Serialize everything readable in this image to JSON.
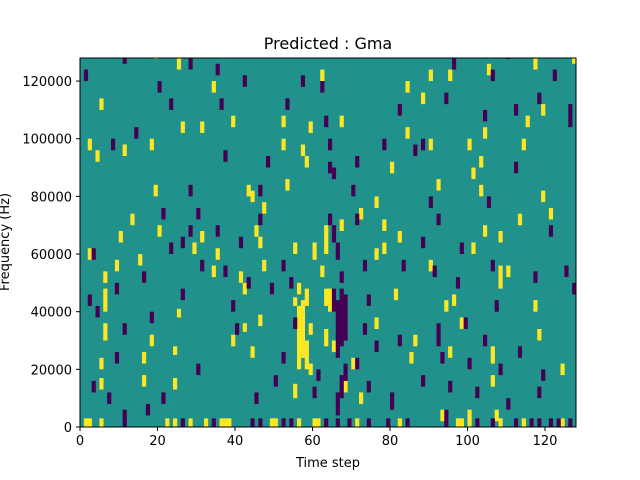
{
  "chart_data": {
    "type": "heatmap",
    "title": "Predicted : Gma",
    "xlabel": "Time step",
    "ylabel": "Frequency (Hz)",
    "xlim": [
      0,
      128
    ],
    "ylim": [
      0,
      128000
    ],
    "xticks": [
      0,
      20,
      40,
      60,
      80,
      100,
      120
    ],
    "yticks": [
      0,
      20000,
      40000,
      60000,
      80000,
      100000,
      120000
    ],
    "grid": false,
    "legend": "none",
    "n_time_bins": 128,
    "n_freq_bins": 128,
    "colors": {
      "low": "#440154",
      "background": "#21918c",
      "high": "#fde725"
    },
    "background_value": 0,
    "cells_high": [
      [
        1,
        0,
        3000
      ],
      [
        2,
        0,
        3000
      ],
      [
        5,
        0,
        3000
      ],
      [
        22,
        0,
        3000
      ],
      [
        24,
        0,
        3000
      ],
      [
        28,
        0,
        3000
      ],
      [
        32,
        0,
        3000
      ],
      [
        36,
        0,
        3000
      ],
      [
        37,
        0,
        3000
      ],
      [
        38,
        0,
        3000
      ],
      [
        49,
        0,
        3000
      ],
      [
        50,
        0,
        3000
      ],
      [
        56,
        0,
        3000
      ],
      [
        60,
        0,
        3000
      ],
      [
        61,
        0,
        3000
      ],
      [
        71,
        0,
        3000
      ],
      [
        82,
        0,
        3000
      ],
      [
        97,
        0,
        3000
      ],
      [
        98,
        0,
        3000
      ],
      [
        100,
        0,
        3000
      ],
      [
        108,
        0,
        3000
      ],
      [
        114,
        0,
        3000
      ],
      [
        124,
        0,
        3000
      ],
      [
        6,
        40000,
        8000
      ],
      [
        6,
        30000,
        6000
      ],
      [
        5,
        20000,
        4000
      ],
      [
        6,
        50000,
        4000
      ],
      [
        5,
        13000,
        4000
      ],
      [
        24,
        13000,
        4000
      ],
      [
        24,
        25000,
        3000
      ],
      [
        25,
        38000,
        3000
      ],
      [
        39,
        28000,
        4000
      ],
      [
        42,
        33000,
        3000
      ],
      [
        46,
        35000,
        4000
      ],
      [
        55,
        10000,
        5000
      ],
      [
        55,
        42000,
        3000
      ],
      [
        56,
        20000,
        10000
      ],
      [
        56,
        30000,
        12000
      ],
      [
        56,
        46000,
        4000
      ],
      [
        57,
        24000,
        20000
      ],
      [
        58,
        20000,
        10000
      ],
      [
        58,
        42000,
        6000
      ],
      [
        59,
        32000,
        4000
      ],
      [
        59,
        18000,
        4000
      ],
      [
        63,
        28000,
        6000
      ],
      [
        63,
        42000,
        6000
      ],
      [
        63,
        60000,
        10000
      ],
      [
        64,
        40000,
        8000
      ],
      [
        60,
        58000,
        6000
      ],
      [
        62,
        52000,
        4000
      ],
      [
        67,
        104000,
        4000
      ],
      [
        62,
        120000,
        4000
      ],
      [
        52,
        104000,
        4000
      ],
      [
        52,
        96000,
        4000
      ],
      [
        58,
        90000,
        4000
      ],
      [
        53,
        82000,
        4000
      ],
      [
        47,
        74000,
        4000
      ],
      [
        44,
        78000,
        4000
      ],
      [
        43,
        80000,
        4000
      ],
      [
        45,
        66000,
        4000
      ],
      [
        46,
        62000,
        4000
      ],
      [
        41,
        50000,
        4000
      ],
      [
        42,
        46000,
        4000
      ],
      [
        31,
        64000,
        4000
      ],
      [
        29,
        60000,
        4000
      ],
      [
        20,
        66000,
        4000
      ],
      [
        19,
        80000,
        4000
      ],
      [
        11,
        94000,
        4000
      ],
      [
        18,
        96000,
        4000
      ],
      [
        2,
        58000,
        4000
      ],
      [
        9,
        54000,
        4000
      ],
      [
        10,
        64000,
        4000
      ],
      [
        25,
        124000,
        4000
      ],
      [
        34,
        116000,
        4000
      ],
      [
        39,
        104000,
        4000
      ],
      [
        31,
        102000,
        4000
      ],
      [
        26,
        102000,
        4000
      ],
      [
        19,
        128000,
        3000
      ],
      [
        5,
        110000,
        4000
      ],
      [
        2,
        96000,
        4000
      ],
      [
        4,
        92000,
        4000
      ],
      [
        76,
        58000,
        4000
      ],
      [
        78,
        60000,
        4000
      ],
      [
        78,
        68000,
        4000
      ],
      [
        80,
        88000,
        4000
      ],
      [
        84,
        100000,
        4000
      ],
      [
        90,
        96000,
        4000
      ],
      [
        84,
        116000,
        4000
      ],
      [
        90,
        120000,
        4000
      ],
      [
        100,
        96000,
        4000
      ],
      [
        101,
        86000,
        4000
      ],
      [
        103,
        90000,
        4000
      ],
      [
        104,
        100000,
        4000
      ],
      [
        103,
        80000,
        4000
      ],
      [
        104,
        66000,
        4000
      ],
      [
        101,
        60000,
        4000
      ],
      [
        108,
        64000,
        4000
      ],
      [
        108,
        48000,
        8000
      ],
      [
        110,
        52000,
        4000
      ],
      [
        117,
        40000,
        4000
      ],
      [
        113,
        70000,
        4000
      ],
      [
        119,
        78000,
        4000
      ],
      [
        121,
        72000,
        4000
      ],
      [
        119,
        108000,
        4000
      ],
      [
        115,
        104000,
        4000
      ],
      [
        117,
        124000,
        4000
      ],
      [
        127,
        126000,
        4000
      ],
      [
        95,
        120000,
        4000
      ],
      [
        105,
        122000,
        4000
      ],
      [
        76,
        34000,
        4000
      ],
      [
        86,
        28000,
        4000
      ],
      [
        95,
        24000,
        4000
      ],
      [
        106,
        22000,
        6000
      ],
      [
        106,
        14000,
        4000
      ],
      [
        107,
        2000,
        4000
      ],
      [
        100,
        2000,
        4000
      ],
      [
        93,
        2000,
        4000
      ],
      [
        85,
        22000,
        4000
      ],
      [
        72,
        8000,
        4000
      ],
      [
        70,
        20000,
        4000
      ],
      [
        68,
        12000,
        4000
      ],
      [
        90,
        54000,
        4000
      ],
      [
        94,
        40000,
        4000
      ],
      [
        96,
        42000,
        4000
      ],
      [
        98,
        34000,
        4000
      ],
      [
        81,
        44000,
        4000
      ],
      [
        15,
        56000,
        4000
      ],
      [
        13,
        70000,
        4000
      ],
      [
        16,
        22000,
        4000
      ],
      [
        18,
        28000,
        4000
      ],
      [
        16,
        14000,
        4000
      ],
      [
        35,
        58000,
        4000
      ],
      [
        34,
        52000,
        4000
      ],
      [
        44,
        24000,
        4000
      ],
      [
        47,
        54000,
        4000
      ],
      [
        55,
        60000,
        4000
      ],
      [
        57,
        94000,
        4000
      ],
      [
        59,
        102000,
        4000
      ],
      [
        65,
        26000,
        4000
      ],
      [
        67,
        68000,
        4000
      ],
      [
        72,
        72000,
        4000
      ],
      [
        76,
        76000,
        4000
      ],
      [
        82,
        64000,
        4000
      ],
      [
        88,
        112000,
        4000
      ],
      [
        92,
        82000,
        4000
      ],
      [
        114,
        96000,
        4000
      ],
      [
        118,
        30000,
        4000
      ],
      [
        124,
        18000,
        4000
      ]
    ],
    "cells_low": [
      [
        11,
        0,
        6000
      ],
      [
        26,
        0,
        3000
      ],
      [
        34,
        0,
        3000
      ],
      [
        44,
        0,
        3000
      ],
      [
        46,
        0,
        3000
      ],
      [
        52,
        0,
        3000
      ],
      [
        54,
        0,
        3000
      ],
      [
        63,
        0,
        3000
      ],
      [
        66,
        0,
        3000
      ],
      [
        69,
        0,
        3000
      ],
      [
        74,
        0,
        3000
      ],
      [
        79,
        0,
        3000
      ],
      [
        84,
        0,
        3000
      ],
      [
        94,
        0,
        6000
      ],
      [
        102,
        0,
        3000
      ],
      [
        106,
        0,
        3000
      ],
      [
        112,
        0,
        3000
      ],
      [
        116,
        0,
        3000
      ],
      [
        118,
        0,
        3000
      ],
      [
        121,
        0,
        3000
      ],
      [
        123,
        0,
        3000
      ],
      [
        126,
        0,
        3000
      ],
      [
        66,
        24000,
        20000
      ],
      [
        67,
        28000,
        20000
      ],
      [
        68,
        30000,
        16000
      ],
      [
        65,
        40000,
        8000
      ],
      [
        66,
        4000,
        8000
      ],
      [
        67,
        10000,
        8000
      ],
      [
        68,
        16000,
        6000
      ],
      [
        67,
        50000,
        4000
      ],
      [
        66,
        58000,
        6000
      ],
      [
        65,
        64000,
        6000
      ],
      [
        64,
        70000,
        4000
      ],
      [
        65,
        86000,
        4000
      ],
      [
        64,
        96000,
        4000
      ],
      [
        63,
        104000,
        4000
      ],
      [
        62,
        116000,
        4000
      ],
      [
        57,
        118000,
        4000
      ],
      [
        53,
        110000,
        4000
      ],
      [
        48,
        90000,
        4000
      ],
      [
        46,
        70000,
        4000
      ],
      [
        41,
        62000,
        4000
      ],
      [
        39,
        40000,
        4000
      ],
      [
        35,
        66000,
        4000
      ],
      [
        30,
        72000,
        4000
      ],
      [
        28,
        66000,
        4000
      ],
      [
        23,
        60000,
        4000
      ],
      [
        26,
        44000,
        4000
      ],
      [
        18,
        36000,
        4000
      ],
      [
        16,
        50000,
        4000
      ],
      [
        11,
        32000,
        4000
      ],
      [
        7,
        8000,
        4000
      ],
      [
        3,
        12000,
        4000
      ],
      [
        9,
        46000,
        4000
      ],
      [
        4,
        38000,
        4000
      ],
      [
        2,
        42000,
        4000
      ],
      [
        3,
        58000,
        4000
      ],
      [
        1,
        120000,
        4000
      ],
      [
        11,
        126000,
        4000
      ],
      [
        20,
        116000,
        4000
      ],
      [
        28,
        124000,
        4000
      ],
      [
        35,
        122000,
        4000
      ],
      [
        42,
        118000,
        4000
      ],
      [
        36,
        110000,
        4000
      ],
      [
        23,
        110000,
        4000
      ],
      [
        14,
        100000,
        4000
      ],
      [
        8,
        96000,
        4000
      ],
      [
        21,
        72000,
        4000
      ],
      [
        28,
        80000,
        4000
      ],
      [
        26,
        62000,
        4000
      ],
      [
        31,
        54000,
        4000
      ],
      [
        37,
        52000,
        4000
      ],
      [
        40,
        32000,
        4000
      ],
      [
        43,
        48000,
        4000
      ],
      [
        52,
        54000,
        4000
      ],
      [
        55,
        34000,
        4000
      ],
      [
        49,
        46000,
        4000
      ],
      [
        54,
        48000,
        4000
      ],
      [
        60,
        10000,
        4000
      ],
      [
        61,
        16000,
        4000
      ],
      [
        64,
        88000,
        4000
      ],
      [
        71,
        90000,
        4000
      ],
      [
        70,
        80000,
        4000
      ],
      [
        71,
        70000,
        4000
      ],
      [
        73,
        54000,
        4000
      ],
      [
        74,
        42000,
        4000
      ],
      [
        73,
        32000,
        4000
      ],
      [
        71,
        20000,
        4000
      ],
      [
        74,
        12000,
        4000
      ],
      [
        76,
        26000,
        4000
      ],
      [
        80,
        6000,
        6000
      ],
      [
        82,
        28000,
        4000
      ],
      [
        83,
        54000,
        4000
      ],
      [
        78,
        96000,
        4000
      ],
      [
        82,
        108000,
        4000
      ],
      [
        88,
        96000,
        4000
      ],
      [
        90,
        76000,
        4000
      ],
      [
        92,
        70000,
        4000
      ],
      [
        91,
        52000,
        4000
      ],
      [
        92,
        28000,
        8000
      ],
      [
        95,
        12000,
        4000
      ],
      [
        99,
        34000,
        4000
      ],
      [
        97,
        48000,
        4000
      ],
      [
        98,
        60000,
        4000
      ],
      [
        106,
        54000,
        4000
      ],
      [
        107,
        40000,
        4000
      ],
      [
        108,
        18000,
        4000
      ],
      [
        110,
        6000,
        4000
      ],
      [
        113,
        24000,
        4000
      ],
      [
        118,
        10000,
        4000
      ],
      [
        119,
        16000,
        4000
      ],
      [
        117,
        50000,
        4000
      ],
      [
        121,
        66000,
        4000
      ],
      [
        125,
        52000,
        4000
      ],
      [
        127,
        46000,
        4000
      ],
      [
        126,
        104000,
        8000
      ],
      [
        122,
        120000,
        4000
      ],
      [
        110,
        128000,
        4000
      ],
      [
        106,
        120000,
        4000
      ],
      [
        112,
        108000,
        4000
      ],
      [
        112,
        88000,
        4000
      ],
      [
        118,
        112000,
        4000
      ],
      [
        96,
        124000,
        4000
      ],
      [
        104,
        106000,
        4000
      ],
      [
        94,
        112000,
        4000
      ],
      [
        86,
        94000,
        4000
      ],
      [
        88,
        62000,
        4000
      ],
      [
        93,
        22000,
        4000
      ],
      [
        100,
        20000,
        4000
      ],
      [
        102,
        10000,
        4000
      ],
      [
        104,
        28000,
        4000
      ],
      [
        105,
        76000,
        4000
      ],
      [
        88,
        14000,
        4000
      ],
      [
        45,
        8000,
        4000
      ],
      [
        50,
        14000,
        4000
      ],
      [
        52,
        22000,
        4000
      ],
      [
        46,
        80000,
        4000
      ],
      [
        37,
        92000,
        4000
      ],
      [
        30,
        18000,
        4000
      ],
      [
        21,
        8000,
        4000
      ],
      [
        17,
        4000,
        4000
      ],
      [
        9,
        22000,
        4000
      ]
    ]
  }
}
